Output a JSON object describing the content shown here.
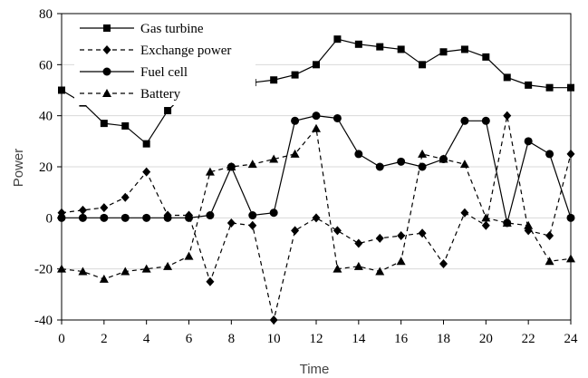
{
  "chart_data": {
    "type": "line",
    "xlabel": "Time",
    "ylabel": "Power",
    "xlim": [
      0,
      24
    ],
    "ylim": [
      -40,
      80
    ],
    "x_ticks": [
      0,
      2,
      4,
      6,
      8,
      10,
      12,
      14,
      16,
      18,
      20,
      22,
      24
    ],
    "y_ticks": [
      -40,
      -20,
      0,
      20,
      40,
      60,
      80
    ],
    "grid": "horizontal",
    "legend_position": "top-left",
    "x": [
      0,
      1,
      2,
      3,
      4,
      5,
      6,
      7,
      8,
      9,
      10,
      11,
      12,
      13,
      14,
      15,
      16,
      17,
      18,
      19,
      20,
      21,
      22,
      23,
      24
    ],
    "series": [
      {
        "name": "Gas turbine",
        "marker": "square",
        "line_style": "solid",
        "color": "#000000",
        "values": [
          50,
          45,
          37,
          36,
          29,
          42,
          50,
          60,
          52,
          53,
          54,
          56,
          60,
          70,
          68,
          67,
          66,
          60,
          65,
          66,
          63,
          55,
          52,
          51,
          51
        ]
      },
      {
        "name": "Exchange power",
        "marker": "diamond",
        "line_style": "dashed",
        "color": "#000000",
        "values": [
          2,
          3,
          4,
          8,
          18,
          1,
          1,
          -25,
          -2,
          -3,
          -40,
          -5,
          0,
          -5,
          -10,
          -8,
          -7,
          -6,
          -18,
          2,
          -3,
          40,
          -5,
          -7,
          25
        ]
      },
      {
        "name": "Fuel cell",
        "marker": "circle",
        "line_style": "solid",
        "color": "#000000",
        "values": [
          0,
          0,
          0,
          0,
          0,
          0,
          0,
          1,
          20,
          1,
          2,
          38,
          40,
          39,
          25,
          20,
          22,
          20,
          23,
          38,
          38,
          -2,
          30,
          25,
          0
        ]
      },
      {
        "name": "Battery",
        "marker": "triangle",
        "line_style": "dashed",
        "color": "#000000",
        "values": [
          -20,
          -21,
          -24,
          -21,
          -20,
          -19,
          -15,
          18,
          20,
          21,
          23,
          25,
          35,
          -20,
          -19,
          -21,
          -17,
          25,
          23,
          21,
          0,
          -2,
          -3,
          -17,
          -16
        ]
      }
    ]
  }
}
